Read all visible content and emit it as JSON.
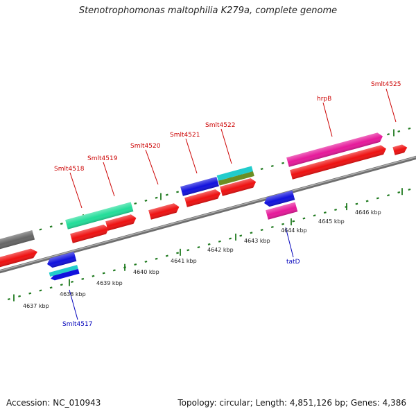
{
  "title": "Stenotrophomonas maltophilia K279a, complete genome",
  "footer": {
    "accession": "Accession: NC_010943",
    "summary": "Topology: circular; Length: 4,851,126 bp; Genes: 4,386"
  },
  "colors": {
    "backbone": "#8a8a8a",
    "ticks": "#1f7a1f",
    "forward_label": "#cc0000",
    "reverse_label": "#0000bb",
    "cds": "#ee1111",
    "gray_feature": "#666666",
    "teal": "#22dd99",
    "blue": "#1111dd",
    "cyan": "#22cccc",
    "olive": "#6b8e23",
    "magenta": "#e6199a"
  },
  "scale_labels": [
    {
      "text": "4637 kbp",
      "kbp": 4637
    },
    {
      "text": "4638 kbp",
      "kbp": 4638
    },
    {
      "text": "4639 kbp",
      "kbp": 4639
    },
    {
      "text": "4640 kbp",
      "kbp": 4640
    },
    {
      "text": "4641 kbp",
      "kbp": 4641
    },
    {
      "text": "4642 kbp",
      "kbp": 4642
    },
    {
      "text": "4643 kbp",
      "kbp": 4643
    },
    {
      "text": "4644 kbp",
      "kbp": 4644
    },
    {
      "text": "4645 kbp",
      "kbp": 4645
    },
    {
      "text": "4646 kbp",
      "kbp": 4646
    }
  ],
  "gene_labels": [
    {
      "text": "Smlt4518",
      "strand": "forward"
    },
    {
      "text": "Smlt4519",
      "strand": "forward"
    },
    {
      "text": "Smlt4520",
      "strand": "forward"
    },
    {
      "text": "Smlt4521",
      "strand": "forward"
    },
    {
      "text": "Smlt4522",
      "strand": "forward"
    },
    {
      "text": "hrpB",
      "strand": "forward"
    },
    {
      "text": "Smlt4525",
      "strand": "forward"
    },
    {
      "text": "Smlt4517",
      "strand": "reverse"
    },
    {
      "text": "tatD",
      "strand": "reverse"
    }
  ]
}
